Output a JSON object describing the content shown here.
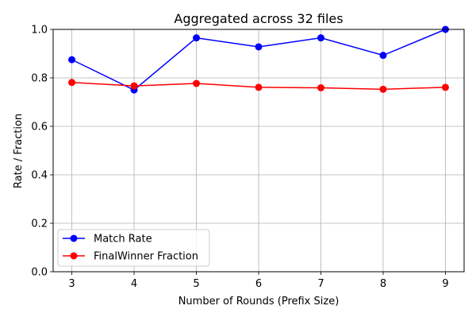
{
  "chart_data": {
    "type": "line",
    "title": "Aggregated across 32 files",
    "xlabel": "Number of Rounds (Prefix Size)",
    "ylabel": "Rate / Fraction",
    "x": [
      3,
      4,
      5,
      6,
      7,
      8,
      9
    ],
    "xlim": [
      2.7,
      9.3
    ],
    "ylim": [
      0.0,
      1.0
    ],
    "xticks": [
      "3",
      "4",
      "5",
      "6",
      "7",
      "8",
      "9"
    ],
    "yticks": [
      "0.0",
      "0.2",
      "0.4",
      "0.6",
      "0.8",
      "1.0"
    ],
    "ytick_values": [
      0.0,
      0.2,
      0.4,
      0.6,
      0.8,
      1.0
    ],
    "grid": true,
    "legend_position": "bottom-left",
    "series": [
      {
        "name": "Match Rate",
        "color": "#0000ff",
        "values": [
          0.875,
          0.75,
          0.965,
          0.928,
          0.965,
          0.893,
          1.0
        ]
      },
      {
        "name": "FinalWinner Fraction",
        "color": "#ff0000",
        "values": [
          0.781,
          0.767,
          0.777,
          0.761,
          0.759,
          0.753,
          0.761
        ]
      }
    ]
  }
}
